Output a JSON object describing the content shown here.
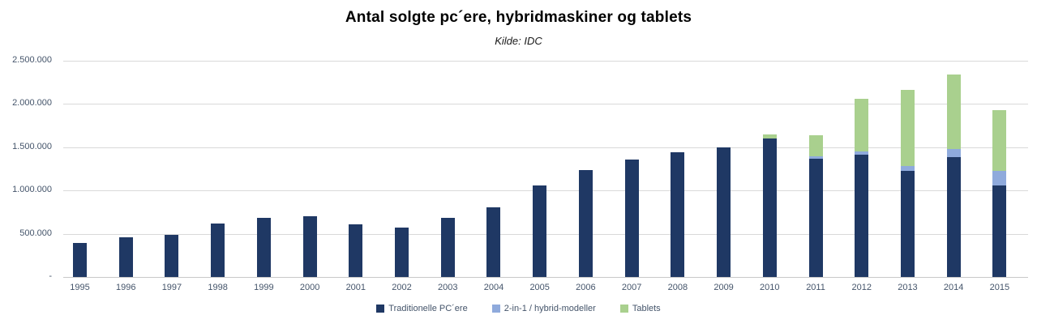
{
  "title": "Antal solgte pc´ere, hybridmaskiner og tablets",
  "subtitle": "Kilde: IDC",
  "colors": {
    "traditional": "#1f3864",
    "hybrid": "#8faadc",
    "tablets": "#a9d08e",
    "gridline": "#d9d9d9",
    "axis_text": "#44546a"
  },
  "chart_data": {
    "type": "bar",
    "stacked": true,
    "title": "Antal solgte pc´ere, hybridmaskiner og tablets",
    "subtitle": "Kilde: IDC",
    "xlabel": "",
    "ylabel": "",
    "ylim": [
      0,
      2500000
    ],
    "grid": true,
    "legend_position": "bottom",
    "y_ticks": [
      {
        "value": 0,
        "label": "-"
      },
      {
        "value": 500000,
        "label": "500.000"
      },
      {
        "value": 1000000,
        "label": "1.000.000"
      },
      {
        "value": 1500000,
        "label": "1.500.000"
      },
      {
        "value": 2000000,
        "label": "2.000.000"
      },
      {
        "value": 2500000,
        "label": "2.500.000"
      }
    ],
    "categories": [
      "1995",
      "1996",
      "1997",
      "1998",
      "1999",
      "2000",
      "2001",
      "2002",
      "2003",
      "2004",
      "2005",
      "2006",
      "2007",
      "2008",
      "2009",
      "2010",
      "2011",
      "2012",
      "2013",
      "2014",
      "2015"
    ],
    "series": [
      {
        "name": "Traditionelle PC´ere",
        "color": "#1f3864",
        "values": [
          390000,
          460000,
          490000,
          615000,
          680000,
          700000,
          610000,
          575000,
          685000,
          810000,
          1055000,
          1240000,
          1355000,
          1440000,
          1495000,
          1600000,
          1370000,
          1410000,
          1225000,
          1390000,
          1060000
        ]
      },
      {
        "name": "2-in-1 / hybrid-modeller",
        "color": "#8faadc",
        "values": [
          0,
          0,
          0,
          0,
          0,
          0,
          0,
          0,
          0,
          0,
          0,
          0,
          0,
          0,
          0,
          0,
          25000,
          45000,
          60000,
          90000,
          165000
        ]
      },
      {
        "name": "Tablets",
        "color": "#a9d08e",
        "values": [
          0,
          0,
          0,
          0,
          0,
          0,
          0,
          0,
          0,
          0,
          0,
          0,
          0,
          0,
          0,
          45000,
          240000,
          605000,
          875000,
          865000,
          705000
        ]
      }
    ]
  }
}
